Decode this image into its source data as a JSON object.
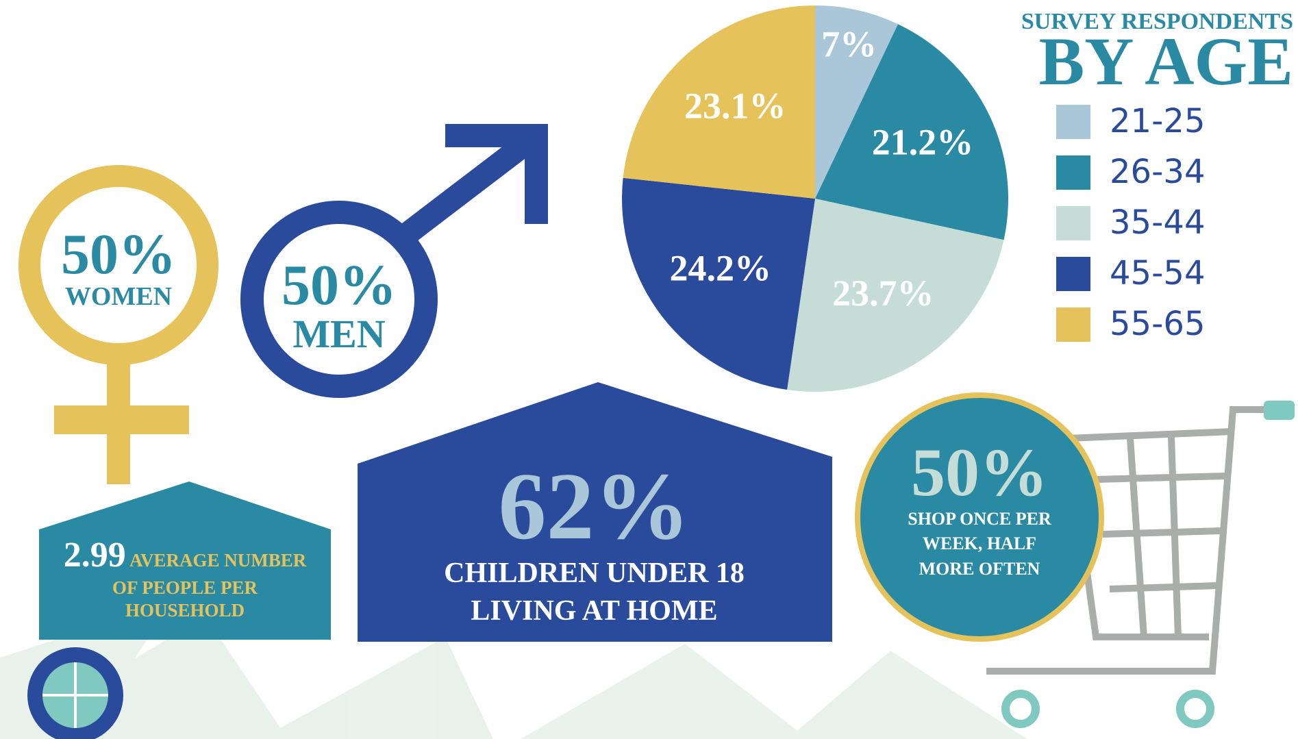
{
  "chart_data": {
    "type": "pie",
    "title": "SURVEY RESPONDENTS",
    "subtitle": "BY AGE",
    "categories": [
      "21-25",
      "26-34",
      "35-44",
      "45-54",
      "55-65"
    ],
    "values": [
      7,
      21.2,
      23.7,
      24.2,
      23.1
    ],
    "value_labels": [
      "7%",
      "21.2%",
      "23.7%",
      "24.2%",
      "23.1%"
    ],
    "colors": [
      "#a9c7d8",
      "#2a8aa4",
      "#c5ddd6",
      "#2a4a9c",
      "#e6c25a"
    ],
    "legend": "top-right"
  },
  "women": {
    "value": "50%",
    "label": "WOMEN"
  },
  "men": {
    "value": "50%",
    "label": "MEN"
  },
  "household": {
    "value": "2.99",
    "label": "AVERAGE NUMBER OF PEOPLE PER HOUSEHOLD"
  },
  "children": {
    "value": "62%",
    "label": "CHILDREN UNDER 18 LIVING AT HOME"
  },
  "shopping": {
    "value": "50%",
    "label": "SHOP ONCE PER WEEK, HALF MORE OFTEN"
  }
}
